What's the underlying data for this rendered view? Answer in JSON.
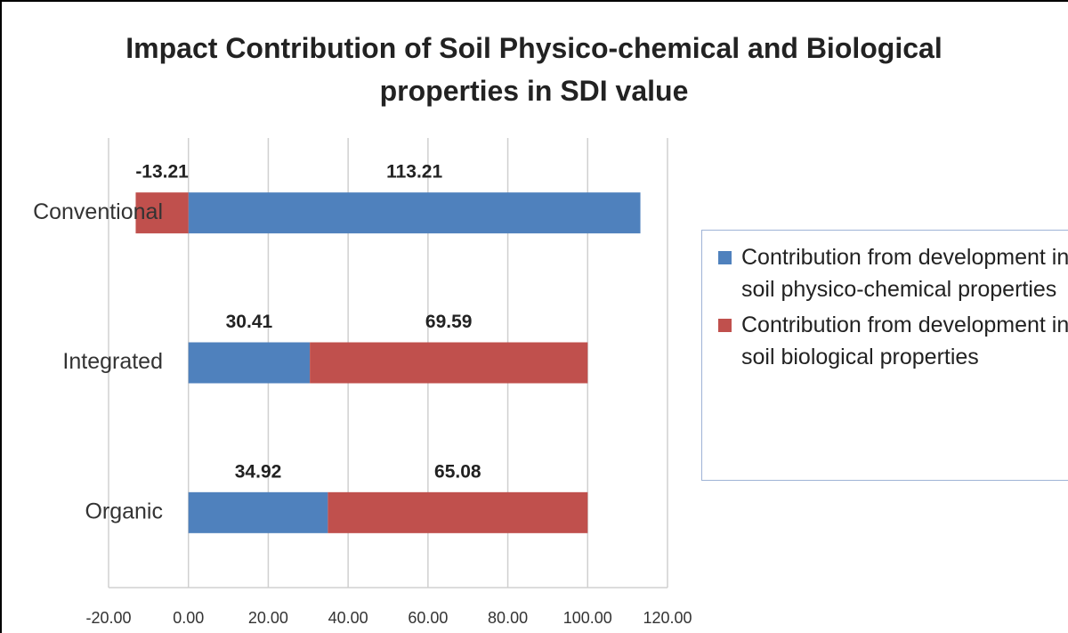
{
  "chart_data": {
    "type": "bar",
    "orientation": "horizontal",
    "stacked": true,
    "title": "Impact Contribution of Soil Physico-chemical and Biological properties in SDI value",
    "categories": [
      "Conventional",
      "Integrated",
      "Organic"
    ],
    "series": [
      {
        "name": "Contribution from development in soil physico-chemical properties",
        "color": "#4f81bd",
        "values": [
          113.21,
          30.41,
          34.92
        ]
      },
      {
        "name": "Contribution from development in soil biological properties",
        "color": "#c0504d",
        "values": [
          -13.21,
          69.59,
          65.08
        ]
      }
    ],
    "xlim": [
      -20,
      120
    ],
    "xticks": [
      {
        "value": -20,
        "label": "-20.00"
      },
      {
        "value": 0,
        "label": "0.00"
      },
      {
        "value": 20,
        "label": "20.00"
      },
      {
        "value": 40,
        "label": "40.00"
      },
      {
        "value": 60,
        "label": "60.00"
      },
      {
        "value": 80,
        "label": "80.00"
      },
      {
        "value": 100,
        "label": "100.00"
      },
      {
        "value": 120,
        "label": "120.00"
      }
    ],
    "grid": true,
    "legend": "right"
  }
}
